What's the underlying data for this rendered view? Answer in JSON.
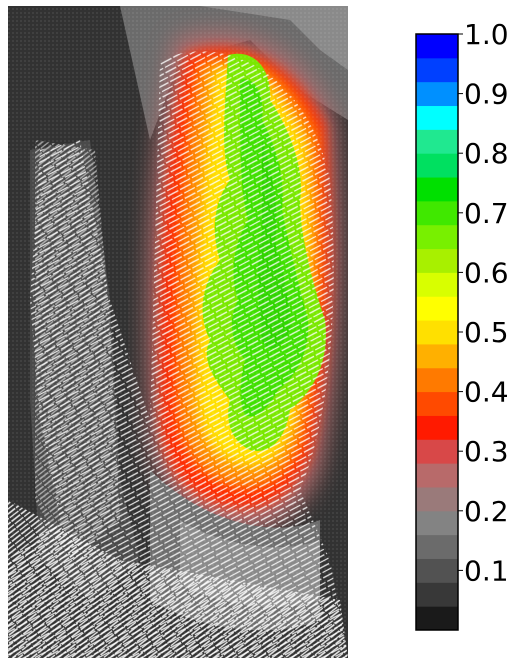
{
  "chart_data": {
    "type": "heatmap",
    "title": "",
    "xlabel": "",
    "ylabel": "",
    "colorbar": {
      "vmin": 0.0,
      "vmax": 1.0,
      "ticks": [
        "1.0",
        "0.9",
        "0.8",
        "0.7",
        "0.6",
        "0.5",
        "0.4",
        "0.3",
        "0.2",
        "0.1"
      ],
      "tick_values": [
        1.0,
        0.9,
        0.8,
        0.7,
        0.6,
        0.5,
        0.4,
        0.3,
        0.2,
        0.1
      ],
      "levels": [
        "#1a1a1a",
        "#383838",
        "#525252",
        "#6b6b6b",
        "#838383",
        "#9a7a7a",
        "#b86a6a",
        "#d84848",
        "#ff1a00",
        "#ff4a00",
        "#ff7a00",
        "#ffb000",
        "#ffe000",
        "#ffff00",
        "#d8ff00",
        "#a8f000",
        "#78f000",
        "#40e800",
        "#00e000",
        "#00e060",
        "#20e890",
        "#00ffff",
        "#0090ff",
        "#0040ff",
        "#0000ff"
      ]
    },
    "field_description": "vector/flow field over a vertical scene, colored by magnitude",
    "regions": [
      {
        "name": "background",
        "value": 0.1
      },
      {
        "name": "left-figure",
        "value": 0.2
      },
      {
        "name": "halo",
        "value": 0.45
      },
      {
        "name": "core",
        "value": 0.65
      },
      {
        "name": "base",
        "value": 0.25
      }
    ]
  }
}
